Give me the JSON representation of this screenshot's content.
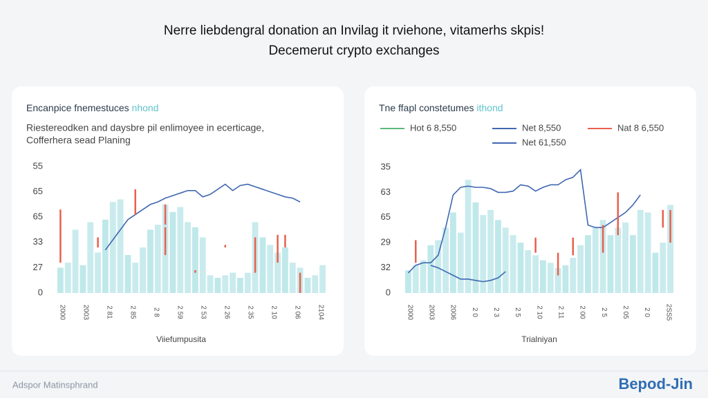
{
  "header": {
    "title": "Nerre liebdengral donation an Invilag it rviehone, vitamerhs skpis!",
    "subtitle": "Decemerut crypto exchanges"
  },
  "chart_data": [
    {
      "type": "bar",
      "title": "Encanpice fnemestuces",
      "title_accent": " nhond",
      "subtitle": [
        "Riestereodken and daysbre pil enlimoyee in ecerticage,",
        "Cofferhera sead Planing"
      ],
      "x_label": "Viiefumpusita",
      "y_labels": [
        "0",
        "27",
        "33",
        "65",
        "65",
        "55"
      ],
      "ylim": [
        0,
        5
      ],
      "x_labels": [
        "2000",
        "2003",
        "2 81",
        "2 85",
        "2 8",
        "2 59",
        "2 53",
        "2 26",
        "2 35",
        "2 10",
        "2 06",
        "2104"
      ],
      "bar_color": "#bfe8ea",
      "line_color": "#3f67b0",
      "marker_color": "#e8604c",
      "bars": [
        1.0,
        1.2,
        2.5,
        1.1,
        2.8,
        1.6,
        2.9,
        3.6,
        3.7,
        1.5,
        1.2,
        1.8,
        2.5,
        2.7,
        3.5,
        3.2,
        3.4,
        2.8,
        2.6,
        2.2,
        0.7,
        0.6,
        0.7,
        0.8,
        0.6,
        0.8,
        2.8,
        2.2,
        1.9,
        1.6,
        1.8,
        1.2,
        1.0,
        0.6,
        0.7,
        1.1
      ],
      "lines": [
        [
          null,
          null,
          null,
          null,
          null,
          null,
          1.7,
          2.1,
          2.5,
          2.9,
          3.1,
          3.3,
          3.5,
          3.6,
          3.75,
          3.85,
          3.95,
          4.05,
          4.05,
          3.8,
          3.9,
          4.1,
          4.3,
          4.05,
          4.25,
          4.3,
          4.2,
          4.1,
          4.0,
          3.9,
          3.8,
          3.75,
          3.6,
          null,
          null,
          null
        ]
      ],
      "markers": [
        {
          "x": 0,
          "low": 1.2,
          "high": 3.3
        },
        {
          "x": 5,
          "low": 1.8,
          "high": 2.2
        },
        {
          "x": 10,
          "low": 3.1,
          "high": 4.1
        },
        {
          "x": 14,
          "low": 2.7,
          "high": 3.5
        },
        {
          "x": 14,
          "low": 1.5,
          "high": 2.6
        },
        {
          "x": 18,
          "low": 0.8,
          "high": 0.9
        },
        {
          "x": 22,
          "low": 1.8,
          "high": 1.9
        },
        {
          "x": 26,
          "low": 0.8,
          "high": 2.2
        },
        {
          "x": 29,
          "low": 1.2,
          "high": 2.3
        },
        {
          "x": 30,
          "low": 1.8,
          "high": 2.3
        },
        {
          "x": 32,
          "low": 0.0,
          "high": 0.8
        }
      ]
    },
    {
      "type": "bar",
      "title": "Tne ffapl constetumes",
      "title_accent": " ithond",
      "legend": [
        {
          "name": "Hot 6 8,550",
          "color": "#5bb87a"
        },
        {
          "name": "Net 8,550",
          "color": "#3f67b0"
        },
        {
          "name": "Nat 8 6,550",
          "color": "#e8604c"
        },
        {
          "name": "Net 61,550",
          "color": "#3f67b0"
        }
      ],
      "x_label": "Trialniyan",
      "y_labels": [
        "0",
        "32",
        "29",
        "65",
        "63",
        "35"
      ],
      "ylim": [
        0,
        5
      ],
      "x_labels": [
        "2000",
        "2003",
        "2006",
        "2 0",
        "2 3",
        "2 5",
        "2 10",
        "2 11",
        "2 00",
        "2 5",
        "2 05",
        "2 0",
        "2SS5"
      ],
      "bar_color": "#bfe8ea",
      "line_color": "#3f67b0",
      "marker_color": "#e8604c",
      "bars": [
        0.9,
        1.1,
        1.3,
        1.9,
        2.1,
        2.6,
        3.2,
        2.4,
        4.5,
        3.6,
        3.1,
        3.3,
        2.9,
        2.6,
        2.3,
        2.0,
        1.7,
        1.5,
        1.3,
        1.2,
        1.0,
        1.1,
        1.4,
        1.9,
        2.3,
        2.6,
        2.9,
        2.3,
        2.6,
        2.8,
        2.3,
        3.3,
        3.2,
        1.6,
        2.0,
        3.5
      ],
      "lines": [
        [
          0.8,
          1.1,
          1.2,
          1.2,
          1.5,
          2.6,
          3.9,
          4.2,
          4.25,
          4.2,
          4.2,
          4.15,
          4.0,
          4.0,
          4.05,
          4.3,
          4.25,
          4.05,
          4.2,
          4.3,
          4.3,
          4.5,
          4.6,
          4.9,
          2.7,
          2.6,
          2.6,
          2.8,
          3.0,
          3.2,
          3.5,
          3.9,
          null,
          null,
          null,
          null
        ],
        [
          null,
          null,
          null,
          1.1,
          1.0,
          0.85,
          0.7,
          0.55,
          0.55,
          0.5,
          0.45,
          0.5,
          0.6,
          0.85,
          null,
          null,
          null,
          null,
          null,
          null,
          null,
          null,
          null,
          null,
          null,
          null,
          null,
          null,
          null,
          null,
          null,
          null,
          null,
          null,
          null,
          null
        ]
      ],
      "markers": [
        {
          "x": 1,
          "low": 1.2,
          "high": 2.1
        },
        {
          "x": 17,
          "low": 1.6,
          "high": 2.2
        },
        {
          "x": 20,
          "low": 0.7,
          "high": 1.6
        },
        {
          "x": 22,
          "low": 1.5,
          "high": 2.2
        },
        {
          "x": 26,
          "low": 1.6,
          "high": 2.7
        },
        {
          "x": 28,
          "low": 2.3,
          "high": 4.0
        },
        {
          "x": 34,
          "low": 2.6,
          "high": 3.3
        },
        {
          "x": 35,
          "low": 2.0,
          "high": 3.3
        }
      ]
    }
  ],
  "footer": {
    "left": "Adspor Matinsphrand",
    "brand": "Bepod-Jin"
  }
}
